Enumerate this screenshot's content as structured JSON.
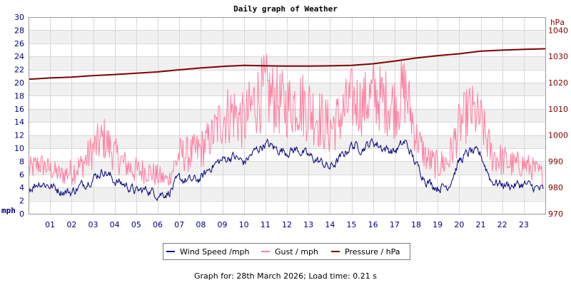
{
  "title": "Daily graph of Weather",
  "left_unit": "mph",
  "right_unit": "hPa",
  "legend": {
    "wind": "Wind Speed /mph",
    "gust": "Gust / mph",
    "pressure": "Pressure / hPa"
  },
  "footer": "Graph for: 28th March 2026; Load time: 0.21 s",
  "colors": {
    "wind": "#000080",
    "gust": "#ff7fa0",
    "pressure": "#800000",
    "left_axis_text": "#000080",
    "right_axis_text": "#800000",
    "band": "#f0f0f0",
    "grid": "#d8d8d8"
  },
  "chart_data": {
    "type": "line",
    "title": "Daily graph of Weather",
    "x_ticks": [
      "01",
      "02",
      "03",
      "04",
      "05",
      "06",
      "07",
      "08",
      "09",
      "10",
      "11",
      "12",
      "13",
      "14",
      "15",
      "16",
      "17",
      "18",
      "19",
      "20",
      "21",
      "22",
      "23"
    ],
    "x_range_hours": [
      0,
      24
    ],
    "y_left": {
      "label": "mph",
      "range": [
        0,
        30
      ],
      "ticks": [
        0,
        2,
        4,
        6,
        8,
        10,
        12,
        14,
        16,
        18,
        20,
        22,
        24,
        26,
        28,
        30
      ]
    },
    "y_right": {
      "label": "hPa",
      "range": [
        970,
        1045
      ],
      "ticks": [
        970,
        980,
        990,
        1000,
        1010,
        1020,
        1030,
        1040
      ]
    },
    "grid": true,
    "legend_position": "bottom-center",
    "series": [
      {
        "name": "Wind Speed /mph",
        "axis": "left",
        "x": [
          0,
          0.5,
          1,
          1.5,
          2,
          2.5,
          3,
          3.5,
          4,
          4.5,
          5,
          5.5,
          6,
          6.5,
          7,
          7.5,
          8,
          8.5,
          9,
          9.5,
          10,
          10.5,
          11,
          11.5,
          12,
          12.5,
          13,
          13.5,
          14,
          14.5,
          15,
          15.5,
          16,
          16.5,
          17,
          17.5,
          18,
          18.5,
          19,
          19.5,
          20,
          20.5,
          21,
          21.5,
          22,
          22.5,
          23,
          23.5,
          23.9
        ],
        "values": [
          3.8,
          4.8,
          4.3,
          3.5,
          3.3,
          4.4,
          5.5,
          6.6,
          5.0,
          4.4,
          3.4,
          3.7,
          3.0,
          3.2,
          5.3,
          5.0,
          5.3,
          7.3,
          8.2,
          8.8,
          7.8,
          9.5,
          10.7,
          9.9,
          9.5,
          9.8,
          8.8,
          8.0,
          7.0,
          8.5,
          10.5,
          10.0,
          11.0,
          10.0,
          9.5,
          11.0,
          7.5,
          5.0,
          4.0,
          4.3,
          8.0,
          9.5,
          9.0,
          5.0,
          4.5,
          4.3,
          4.5,
          4.0,
          3.6
        ]
      },
      {
        "name": "Gust / mph",
        "axis": "left",
        "x": [
          0,
          0.5,
          1,
          1.5,
          2,
          2.5,
          3,
          3.5,
          4,
          4.5,
          5,
          5.5,
          6,
          6.5,
          7,
          7.5,
          8,
          8.5,
          9,
          9.5,
          10,
          10.5,
          11,
          11.5,
          12,
          12.5,
          13,
          13.5,
          14,
          14.5,
          15,
          15.5,
          16,
          16.5,
          17,
          17.5,
          18,
          18.5,
          19,
          19.5,
          20,
          20.5,
          21,
          21.5,
          22,
          22.5,
          23,
          23.5,
          23.9
        ],
        "values": [
          8,
          9,
          8,
          7,
          8,
          9,
          12,
          14,
          11,
          9,
          8,
          8,
          7,
          6,
          11,
          11,
          12,
          14,
          18,
          19,
          17,
          21,
          23,
          21,
          20,
          21,
          20,
          18,
          16,
          18,
          21,
          20,
          22,
          21,
          20,
          23,
          14,
          10,
          9,
          10,
          16,
          19,
          17,
          11,
          10,
          9,
          9,
          8,
          7
        ]
      },
      {
        "name": "Pressure / hPa",
        "axis": "right",
        "x": [
          0,
          1,
          2,
          3,
          4,
          5,
          6,
          7,
          8,
          9,
          10,
          11,
          12,
          13,
          14,
          15,
          16,
          17,
          18,
          19,
          20,
          21,
          22,
          23,
          24
        ],
        "values": [
          1021.3,
          1021.8,
          1022.1,
          1022.7,
          1023.1,
          1023.6,
          1024.1,
          1024.9,
          1025.6,
          1026.2,
          1026.6,
          1026.4,
          1026.3,
          1026.3,
          1026.4,
          1026.6,
          1027.2,
          1028.2,
          1029.4,
          1030.3,
          1031.0,
          1032.0,
          1032.4,
          1032.7,
          1032.9
        ]
      }
    ]
  }
}
